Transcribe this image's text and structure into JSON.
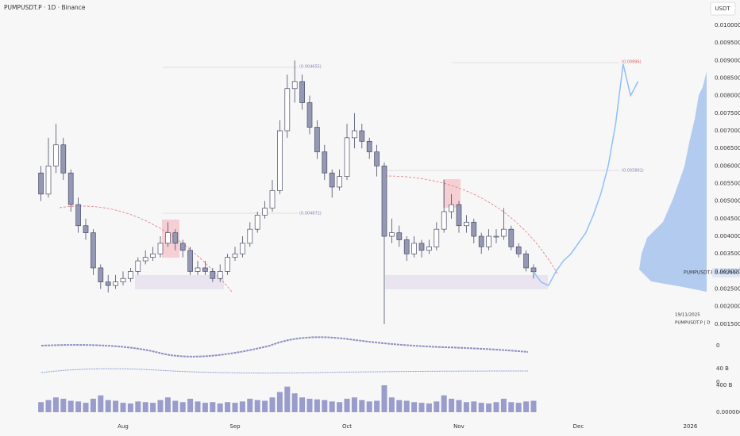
{
  "chart_data": {
    "type": "candlestick",
    "title": "PUMPUSDT.P · 1D · Binance",
    "currency": "USDT",
    "categories": [
      null,
      null,
      null,
      null,
      null,
      null,
      null,
      null,
      null,
      null,
      null,
      "Aug",
      null,
      null,
      null,
      null,
      null,
      null,
      null,
      null,
      null,
      null,
      null,
      null,
      null,
      null,
      "Sep",
      null,
      null,
      null,
      null,
      null,
      null,
      null,
      null,
      null,
      null,
      null,
      null,
      null,
      null,
      "Oct",
      null,
      null,
      null,
      null,
      null,
      null,
      null,
      null,
      null,
      null,
      null,
      null,
      null,
      null,
      "Nov",
      null,
      null,
      null,
      null,
      null,
      null,
      null,
      null,
      null,
      null,
      null,
      null,
      null,
      null,
      null,
      "Dec",
      null,
      null,
      null,
      null,
      null,
      null,
      null,
      null,
      null,
      null,
      null,
      null,
      null,
      null,
      "2026"
    ],
    "ohlc": [
      [
        0.0058,
        0.006,
        0.005,
        0.0052
      ],
      [
        0.0052,
        0.0068,
        0.0051,
        0.006
      ],
      [
        0.006,
        0.0072,
        0.0058,
        0.0066
      ],
      [
        0.0066,
        0.0068,
        0.0056,
        0.0058
      ],
      [
        0.0058,
        0.0059,
        0.0047,
        0.0049
      ],
      [
        0.0049,
        0.0051,
        0.0041,
        0.0043
      ],
      [
        0.0043,
        0.0045,
        0.0039,
        0.0041
      ],
      [
        0.0041,
        0.0042,
        0.0029,
        0.0031
      ],
      [
        0.0031,
        0.0032,
        0.0025,
        0.0027
      ],
      [
        0.0027,
        0.0029,
        0.0024,
        0.0026
      ],
      [
        0.0026,
        0.0029,
        0.0025,
        0.0027
      ],
      [
        0.0027,
        0.003,
        0.0026,
        0.0028
      ],
      [
        0.0028,
        0.0031,
        0.0027,
        0.003
      ],
      [
        0.003,
        0.0034,
        0.0029,
        0.0033
      ],
      [
        0.0033,
        0.0036,
        0.0032,
        0.0034
      ],
      [
        0.0034,
        0.0037,
        0.0033,
        0.0035
      ],
      [
        0.0035,
        0.004,
        0.0034,
        0.0038
      ],
      [
        0.0038,
        0.0044,
        0.0037,
        0.0041
      ],
      [
        0.0041,
        0.0042,
        0.0036,
        0.0038
      ],
      [
        0.0038,
        0.0039,
        0.0034,
        0.0036
      ],
      [
        0.0036,
        0.0037,
        0.0029,
        0.003
      ],
      [
        0.003,
        0.0033,
        0.0029,
        0.0031
      ],
      [
        0.0031,
        0.0033,
        0.0029,
        0.003
      ],
      [
        0.003,
        0.0031,
        0.0027,
        0.0028
      ],
      [
        0.0028,
        0.0032,
        0.0027,
        0.003
      ],
      [
        0.003,
        0.0035,
        0.0029,
        0.0034
      ],
      [
        0.0034,
        0.0037,
        0.0033,
        0.0035
      ],
      [
        0.0035,
        0.004,
        0.0034,
        0.0038
      ],
      [
        0.0038,
        0.0044,
        0.0037,
        0.0042
      ],
      [
        0.0042,
        0.0047,
        0.0041,
        0.0046
      ],
      [
        0.0046,
        0.005,
        0.0045,
        0.0048
      ],
      [
        0.0048,
        0.0056,
        0.0047,
        0.0053
      ],
      [
        0.0053,
        0.0073,
        0.0052,
        0.007
      ],
      [
        0.007,
        0.0086,
        0.0068,
        0.0082
      ],
      [
        0.0082,
        0.009,
        0.0078,
        0.0084
      ],
      [
        0.0084,
        0.0086,
        0.0076,
        0.0078
      ],
      [
        0.0078,
        0.008,
        0.0069,
        0.0071
      ],
      [
        0.0071,
        0.0073,
        0.0062,
        0.0064
      ],
      [
        0.0064,
        0.0066,
        0.0056,
        0.0058
      ],
      [
        0.0058,
        0.0059,
        0.0051,
        0.0054
      ],
      [
        0.0054,
        0.0059,
        0.0053,
        0.0057
      ],
      [
        0.0057,
        0.0072,
        0.0056,
        0.0068
      ],
      [
        0.0068,
        0.0075,
        0.0065,
        0.007
      ],
      [
        0.007,
        0.0072,
        0.0065,
        0.0067
      ],
      [
        0.0067,
        0.0068,
        0.0062,
        0.0064
      ],
      [
        0.0064,
        0.0066,
        0.0057,
        0.006
      ],
      [
        0.006,
        0.0061,
        0.0015,
        0.004
      ],
      [
        0.004,
        0.0045,
        0.0038,
        0.0041
      ],
      [
        0.0041,
        0.0043,
        0.0037,
        0.0039
      ],
      [
        0.0039,
        0.004,
        0.0033,
        0.0035
      ],
      [
        0.0035,
        0.004,
        0.0034,
        0.0038
      ],
      [
        0.0038,
        0.0039,
        0.0034,
        0.0036
      ],
      [
        0.0036,
        0.0039,
        0.0035,
        0.0037
      ],
      [
        0.0037,
        0.0044,
        0.0036,
        0.0042
      ],
      [
        0.0042,
        0.0056,
        0.0041,
        0.0047
      ],
      [
        0.0047,
        0.0052,
        0.0045,
        0.0049
      ],
      [
        0.0049,
        0.005,
        0.0041,
        0.0043
      ],
      [
        0.0043,
        0.0046,
        0.0041,
        0.0044
      ],
      [
        0.0044,
        0.0045,
        0.0038,
        0.004
      ],
      [
        0.004,
        0.0041,
        0.0035,
        0.0037
      ],
      [
        0.0037,
        0.0042,
        0.0036,
        0.004
      ],
      [
        0.004,
        0.0042,
        0.0038,
        0.004
      ],
      [
        0.004,
        0.0048,
        0.0039,
        0.0042
      ],
      [
        0.0042,
        0.0043,
        0.0036,
        0.0037
      ],
      [
        0.0037,
        0.0038,
        0.0034,
        0.0035
      ],
      [
        0.0035,
        0.0036,
        0.003,
        0.0031
      ],
      [
        0.0031,
        0.0032,
        0.0028,
        0.00299
      ],
      null,
      null,
      null,
      null,
      null,
      null,
      null,
      null,
      null,
      null,
      null,
      null,
      null,
      null,
      null,
      null,
      null,
      null,
      null,
      null,
      null
    ],
    "up_color": "#ffffff",
    "down_color": "#9598b5",
    "projection": {
      "color": "#90bff9",
      "values": [
        null,
        null,
        null,
        null,
        null,
        null,
        null,
        null,
        null,
        null,
        null,
        null,
        null,
        null,
        null,
        null,
        null,
        null,
        null,
        null,
        null,
        null,
        null,
        null,
        null,
        null,
        null,
        null,
        null,
        null,
        null,
        null,
        null,
        null,
        null,
        null,
        null,
        null,
        null,
        null,
        null,
        null,
        null,
        null,
        null,
        null,
        null,
        null,
        null,
        null,
        null,
        null,
        null,
        null,
        null,
        null,
        null,
        null,
        null,
        null,
        null,
        null,
        null,
        null,
        null,
        null,
        0.00299,
        0.0027,
        0.0026,
        0.003,
        0.0033,
        0.0035,
        0.0038,
        0.0041,
        0.0046,
        0.0052,
        0.006,
        0.0072,
        0.0089,
        0.008,
        0.0084,
        null,
        null,
        null,
        null,
        null,
        null,
        null
      ]
    },
    "ylim": [
      0.00125,
      0.01072
    ],
    "yticks": [
      {
        "value": 0.0015,
        "label": "0.001500"
      },
      {
        "value": 0.002,
        "label": "0.002000"
      },
      {
        "value": 0.0025,
        "label": "0.002500"
      },
      {
        "value": 0.003,
        "label": "0.003000"
      },
      {
        "value": 0.0035,
        "label": "0.003500"
      },
      {
        "value": 0.004,
        "label": "0.004000"
      },
      {
        "value": 0.0045,
        "label": "0.004500"
      },
      {
        "value": 0.005,
        "label": "0.005000"
      },
      {
        "value": 0.0055,
        "label": "0.005500"
      },
      {
        "value": 0.006,
        "label": "0.006000"
      },
      {
        "value": 0.0065,
        "label": "0.006500"
      },
      {
        "value": 0.007,
        "label": "0.007000"
      },
      {
        "value": 0.0075,
        "label": "0.007500"
      },
      {
        "value": 0.008,
        "label": "0.008000"
      },
      {
        "value": 0.0085,
        "label": "0.008500"
      },
      {
        "value": 0.009,
        "label": "0.009000"
      },
      {
        "value": 0.0095,
        "label": "0.009500"
      },
      {
        "value": 0.01,
        "label": "0.010000"
      }
    ],
    "grid": false,
    "volume": {
      "color": "#9a9ccc",
      "values": [
        150,
        180,
        220,
        200,
        170,
        160,
        140,
        200,
        250,
        180,
        170,
        140,
        130,
        160,
        150,
        140,
        180,
        220,
        170,
        150,
        200,
        160,
        140,
        150,
        130,
        150,
        140,
        160,
        200,
        180,
        170,
        220,
        300,
        380,
        280,
        220,
        200,
        190,
        180,
        160,
        150,
        200,
        220,
        180,
        160,
        170,
        400,
        220,
        180,
        170,
        150,
        140,
        130,
        160,
        250,
        200,
        180,
        150,
        160,
        140,
        130,
        150,
        200,
        150,
        140,
        160,
        170,
        null,
        null,
        null,
        null,
        null,
        null,
        null,
        null,
        null,
        null,
        null,
        null,
        null,
        null,
        null,
        null,
        null,
        null,
        null,
        null,
        null
      ],
      "ylim": [
        0,
        400
      ],
      "yticks": [
        {
          "value": 0,
          "label": "0.000000"
        },
        {
          "value": 400,
          "label": "400 B"
        }
      ]
    },
    "indicator_labels": [
      "0",
      "40 B",
      "0"
    ],
    "annotations": [
      "(0.004655)",
      "(0.004872)",
      "(0.005881)",
      "(0.00896)"
    ],
    "price_tag": {
      "symbol": "PUMPUSDT.P",
      "price": "0.002990"
    },
    "footer": {
      "date": "19/11/2025",
      "symbol": "PUMPUSDT.P | D"
    }
  }
}
